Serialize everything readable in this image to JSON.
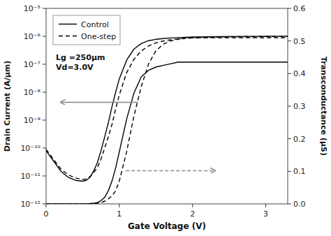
{
  "chart_data": {
    "type": "line",
    "x_label": "Gate Voltage (V)",
    "y_label": "Drain Current (A/μm)",
    "y2_label": "Transconductance (μS)",
    "annotations": [
      "Lg =250μm",
      "Vd=3.0V"
    ],
    "x": [
      0.0,
      0.1,
      0.2,
      0.3,
      0.4,
      0.5,
      0.55,
      0.6,
      0.65,
      0.7,
      0.75,
      0.8,
      0.85,
      0.9,
      0.95,
      1.0,
      1.1,
      1.2,
      1.3,
      1.4,
      1.5,
      1.6,
      1.7,
      1.8,
      1.9,
      2.0,
      2.2,
      2.4,
      2.6,
      2.8,
      3.0,
      3.2,
      3.3
    ],
    "series": [
      {
        "name": "Control",
        "color": "black",
        "line_style": "solid",
        "values": [
          8e-11,
          3.5e-11,
          1.5e-11,
          9e-12,
          7e-12,
          6.5e-12,
          7e-12,
          9e-12,
          1.5e-11,
          3e-11,
          8e-11,
          2.5e-10,
          8e-10,
          3e-09,
          1e-08,
          3e-08,
          1.4e-07,
          3.5e-07,
          5.5e-07,
          7e-07,
          7.8e-07,
          8.3e-07,
          8.7e-07,
          9e-07,
          9.2e-07,
          9.4e-07,
          9.65e-07,
          9.8e-07,
          9.9e-07,
          9.95e-07,
          1e-06,
          1.01e-06,
          1.015e-06
        ]
      },
      {
        "name": "One-step",
        "color": "black",
        "line_style": "dashed",
        "values": [
          9e-11,
          4e-11,
          1.8e-11,
          1.1e-11,
          8.5e-12,
          7.5e-12,
          7.8e-12,
          9.5e-12,
          1.3e-11,
          2e-11,
          4e-11,
          1e-10,
          2.5e-10,
          7e-10,
          2.5e-09,
          8e-09,
          5e-08,
          1.5e-07,
          3e-07,
          4.5e-07,
          5.8e-07,
          6.8e-07,
          7.5e-07,
          8e-07,
          8.4e-07,
          8.7e-07,
          9.1e-07,
          9.4e-07,
          9.6e-07,
          9.75e-07,
          9.85e-07,
          9.95e-07,
          1e-06
        ]
      },
      {
        "name": "Control",
        "color": "black",
        "line_style": "solid",
        "axis": "y2",
        "values": [
          0.0,
          0.0,
          0.0,
          0.0,
          0.0,
          0.0,
          0.0,
          0.001,
          0.002,
          0.004,
          0.01,
          0.02,
          0.04,
          0.07,
          0.11,
          0.16,
          0.26,
          0.34,
          0.39,
          0.41,
          0.42,
          0.425,
          0.43,
          0.435,
          0.435,
          0.435,
          0.435,
          0.435,
          0.435,
          0.435,
          0.435,
          0.435,
          0.435
        ]
      },
      {
        "name": "One-step",
        "color": "black",
        "line_style": "dashed",
        "axis": "y2",
        "values": [
          0.0,
          0.0,
          0.0,
          0.0,
          0.0,
          0.0,
          0.0,
          0.0,
          0.001,
          0.002,
          0.004,
          0.008,
          0.015,
          0.025,
          0.04,
          0.07,
          0.16,
          0.27,
          0.36,
          0.43,
          0.47,
          0.49,
          0.5,
          0.505,
          0.51,
          0.51,
          0.51,
          0.51,
          0.51,
          0.51,
          0.51,
          0.51,
          0.51
        ]
      }
    ],
    "xlim": [
      0,
      3.3
    ],
    "xticks": [
      0,
      1,
      2,
      3
    ],
    "log": "y",
    "ylim": [
      1e-12,
      1e-05
    ],
    "yticks": [
      {
        "value": 1e-12,
        "label": "10⁻¹²"
      },
      {
        "value": 1e-11,
        "label": "10⁻¹¹"
      },
      {
        "value": 1e-10,
        "label": "10⁻¹⁰"
      },
      {
        "value": 1e-09,
        "label": "10⁻⁹"
      },
      {
        "value": 1e-08,
        "label": "10⁻⁸"
      },
      {
        "value": 1e-07,
        "label": "10⁻⁷"
      },
      {
        "value": 1e-06,
        "label": "10⁻⁶"
      },
      {
        "value": 1e-05,
        "label": "10⁻⁵"
      }
    ],
    "y2lim": [
      0,
      0.6
    ],
    "y2ticks": [
      {
        "value": 0,
        "label": "0.0"
      },
      0.1,
      0.2,
      0.3,
      0.4,
      0.5,
      0.6
    ],
    "legend": "upper left",
    "grid": false
  }
}
